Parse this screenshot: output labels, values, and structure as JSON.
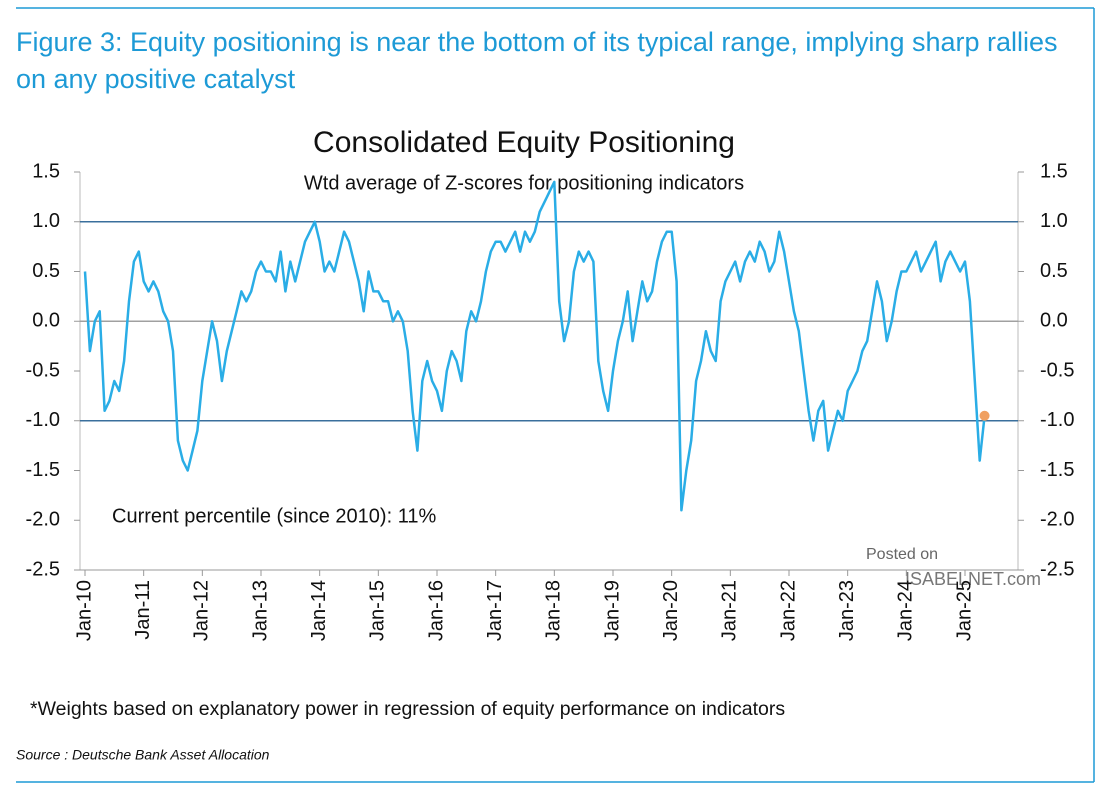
{
  "chart_data": {
    "type": "line",
    "figure_title": "Figure 3: Equity positioning is near the bottom of its typical range, implying sharp rallies on any positive catalyst",
    "title": "Consolidated Equity Positioning",
    "subtitle": "Wtd average of Z-scores for positioning indicators",
    "annotation": "Current percentile (since 2010): 11%",
    "footnote": "*Weights based on explanatory power in regression of equity performance on indicators",
    "source": "Source : Deutsche Bank Asset Allocation",
    "watermark": [
      "Posted on",
      "ISABELNET.com"
    ],
    "color": "#2aade6",
    "last_point_color": "#f0a060",
    "reference_lines": [
      {
        "value": 1,
        "color": "#3a6f9c"
      },
      {
        "value": 0,
        "color": "#a0a0a0"
      },
      {
        "value": -1,
        "color": "#3a6f9c"
      }
    ],
    "categories": [
      "Jan-10",
      null,
      null,
      null,
      null,
      null,
      null,
      null,
      null,
      null,
      null,
      null,
      "Jan-11",
      null,
      null,
      null,
      null,
      null,
      null,
      null,
      null,
      null,
      null,
      null,
      "Jan-12",
      null,
      null,
      null,
      null,
      null,
      null,
      null,
      null,
      null,
      null,
      null,
      "Jan-13",
      null,
      null,
      null,
      null,
      null,
      null,
      null,
      null,
      null,
      null,
      null,
      "Jan-14",
      null,
      null,
      null,
      null,
      null,
      null,
      null,
      null,
      null,
      null,
      null,
      "Jan-15",
      null,
      null,
      null,
      null,
      null,
      null,
      null,
      null,
      null,
      null,
      null,
      "Jan-16",
      null,
      null,
      null,
      null,
      null,
      null,
      null,
      null,
      null,
      null,
      null,
      "Jan-17",
      null,
      null,
      null,
      null,
      null,
      null,
      null,
      null,
      null,
      null,
      null,
      "Jan-18",
      null,
      null,
      null,
      null,
      null,
      null,
      null,
      null,
      null,
      null,
      null,
      "Jan-19",
      null,
      null,
      null,
      null,
      null,
      null,
      null,
      null,
      null,
      null,
      null,
      "Jan-20",
      null,
      null,
      null,
      null,
      null,
      null,
      null,
      null,
      null,
      null,
      null,
      "Jan-21",
      null,
      null,
      null,
      null,
      null,
      null,
      null,
      null,
      null,
      null,
      null,
      "Jan-22",
      null,
      null,
      null,
      null,
      null,
      null,
      null,
      null,
      null,
      null,
      null,
      "Jan-23",
      null,
      null,
      null,
      null,
      null,
      null,
      null,
      null,
      null,
      null,
      null,
      "Jan-24",
      null,
      null,
      null,
      null,
      null,
      null,
      null,
      null,
      null,
      null,
      null,
      "Jan-25",
      null,
      null,
      null,
      null
    ],
    "values": [
      0.5,
      -0.3,
      0.0,
      0.1,
      -0.9,
      -0.8,
      -0.6,
      -0.7,
      -0.4,
      0.2,
      0.6,
      0.7,
      0.4,
      0.3,
      0.4,
      0.3,
      0.1,
      0.0,
      -0.3,
      -1.2,
      -1.4,
      -1.5,
      -1.3,
      -1.1,
      -0.6,
      -0.3,
      0.0,
      -0.2,
      -0.6,
      -0.3,
      -0.1,
      0.1,
      0.3,
      0.2,
      0.3,
      0.5,
      0.6,
      0.5,
      0.5,
      0.4,
      0.7,
      0.3,
      0.6,
      0.4,
      0.6,
      0.8,
      0.9,
      1.0,
      0.8,
      0.5,
      0.6,
      0.5,
      0.7,
      0.9,
      0.8,
      0.6,
      0.4,
      0.1,
      0.5,
      0.3,
      0.3,
      0.2,
      0.2,
      0.0,
      0.1,
      0.0,
      -0.3,
      -0.9,
      -1.3,
      -0.6,
      -0.4,
      -0.6,
      -0.7,
      -0.9,
      -0.5,
      -0.3,
      -0.4,
      -0.6,
      -0.1,
      0.1,
      0.0,
      0.2,
      0.5,
      0.7,
      0.8,
      0.8,
      0.7,
      0.8,
      0.9,
      0.7,
      0.9,
      0.8,
      0.9,
      1.1,
      1.2,
      1.3,
      1.4,
      0.2,
      -0.2,
      0.0,
      0.5,
      0.7,
      0.6,
      0.7,
      0.6,
      -0.4,
      -0.7,
      -0.9,
      -0.5,
      -0.2,
      0.0,
      0.3,
      -0.2,
      0.1,
      0.4,
      0.2,
      0.3,
      0.6,
      0.8,
      0.9,
      0.9,
      0.4,
      -1.9,
      -1.5,
      -1.2,
      -0.6,
      -0.4,
      -0.1,
      -0.3,
      -0.4,
      0.2,
      0.4,
      0.5,
      0.6,
      0.4,
      0.6,
      0.7,
      0.6,
      0.8,
      0.7,
      0.5,
      0.6,
      0.9,
      0.7,
      0.4,
      0.1,
      -0.1,
      -0.5,
      -0.9,
      -1.2,
      -0.9,
      -0.8,
      -1.3,
      -1.1,
      -0.9,
      -1.0,
      -0.7,
      -0.6,
      -0.5,
      -0.3,
      -0.2,
      0.1,
      0.4,
      0.2,
      -0.2,
      0.0,
      0.3,
      0.5,
      0.5,
      0.6,
      0.7,
      0.5,
      0.6,
      0.7,
      0.8,
      0.4,
      0.6,
      0.7,
      0.6,
      0.5,
      0.6,
      0.2,
      -0.6,
      -1.4,
      -0.95
    ],
    "ylim": [
      -2.5,
      1.5
    ],
    "yticks": [
      1.5,
      {
        "value": 1,
        "label": "1.0"
      },
      0.5,
      {
        "value": 0,
        "label": "0.0"
      },
      -0.5,
      {
        "value": -1,
        "label": "-1.0"
      },
      -1.5,
      {
        "value": -2,
        "label": "-2.0"
      },
      -2.5
    ],
    "y2lim": [
      -2.5,
      1.5
    ],
    "y2ticks": [
      1.5,
      {
        "value": 1,
        "label": "1.0"
      },
      0.5,
      {
        "value": 0,
        "label": "0.0"
      },
      -0.5,
      {
        "value": -1,
        "label": "-1.0"
      },
      -1.5,
      {
        "value": -2,
        "label": "-2.0"
      },
      -2.5
    ]
  }
}
